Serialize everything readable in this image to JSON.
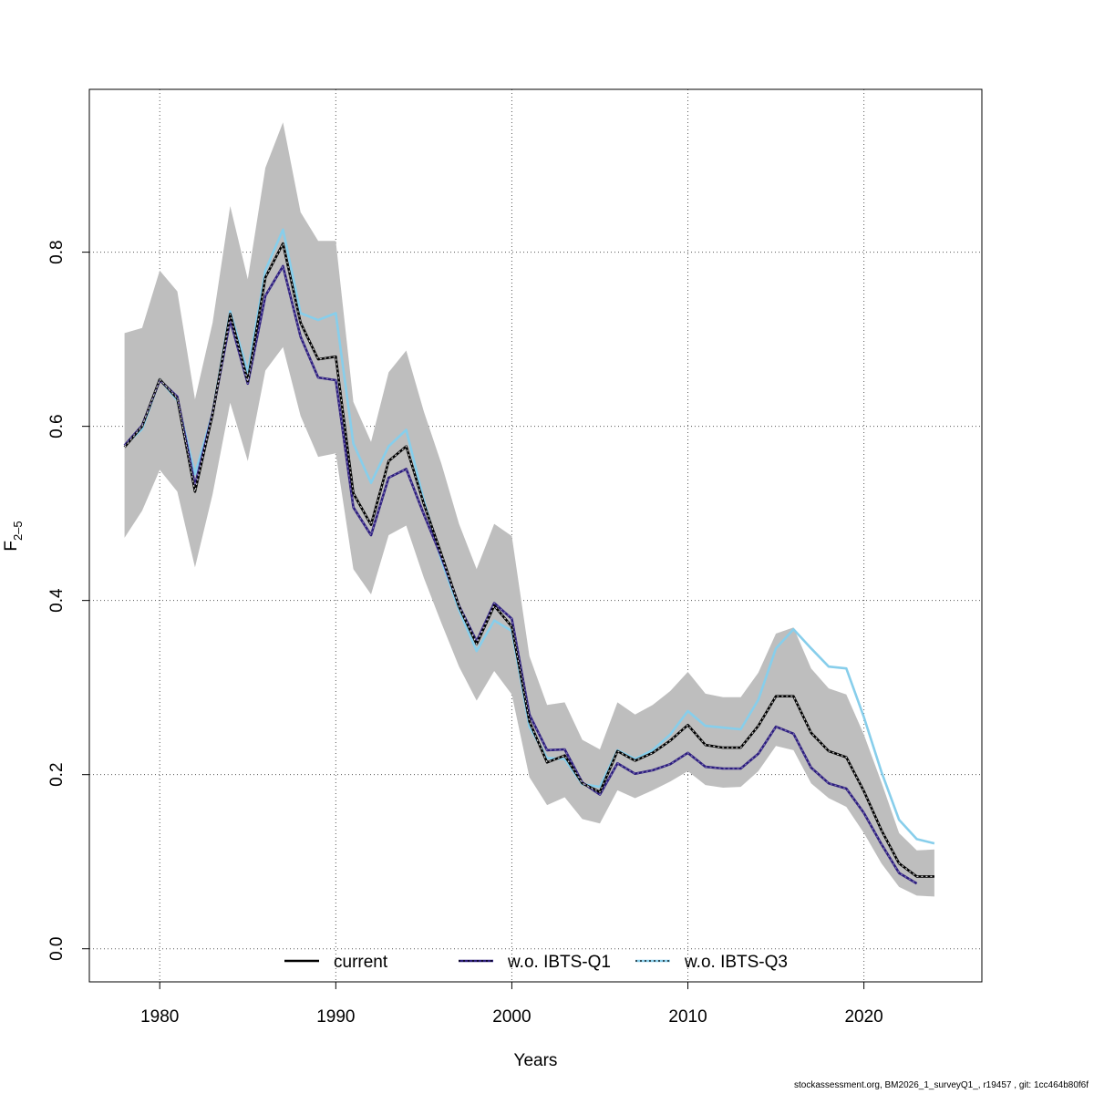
{
  "chart_data": {
    "type": "line",
    "title": "",
    "xlabel": "Years",
    "ylabel_base": "F",
    "ylabel_sub": "2–5",
    "xlim": [
      1976.0,
      2026.7
    ],
    "ylim": [
      -0.038,
      0.987
    ],
    "x_ticks": [
      "1980",
      "1990",
      "2000",
      "2010",
      "2020"
    ],
    "y_ticks": [
      "0.0",
      "0.2",
      "0.4",
      "0.6",
      "0.8"
    ],
    "grid": true,
    "legend_position": "bottom",
    "ci_color": "#bebebe",
    "ci_band": {
      "x": [
        1978,
        1979,
        1980,
        1981,
        1982,
        1983,
        1984,
        1985,
        1986,
        1987,
        1988,
        1989,
        1990,
        1991,
        1992,
        1993,
        1994,
        1995,
        1996,
        1997,
        1998,
        1999,
        2000,
        2001,
        2002,
        2003,
        2004,
        2005,
        2006,
        2007,
        2008,
        2009,
        2010,
        2011,
        2012,
        2013,
        2014,
        2015,
        2016,
        2017,
        2018,
        2019,
        2020,
        2021,
        2022,
        2023,
        2024
      ],
      "upper": [
        0.707,
        0.713,
        0.779,
        0.755,
        0.631,
        0.719,
        0.853,
        0.769,
        0.897,
        0.949,
        0.846,
        0.813,
        0.813,
        0.628,
        0.582,
        0.662,
        0.687,
        0.617,
        0.557,
        0.488,
        0.436,
        0.488,
        0.474,
        0.336,
        0.28,
        0.283,
        0.24,
        0.229,
        0.283,
        0.269,
        0.28,
        0.296,
        0.318,
        0.293,
        0.289,
        0.289,
        0.317,
        0.362,
        0.369,
        0.322,
        0.299,
        0.292,
        0.246,
        0.191,
        0.133,
        0.113,
        0.114
      ],
      "lower": [
        0.472,
        0.503,
        0.55,
        0.525,
        0.438,
        0.522,
        0.627,
        0.56,
        0.664,
        0.691,
        0.612,
        0.565,
        0.569,
        0.436,
        0.407,
        0.475,
        0.486,
        0.426,
        0.374,
        0.324,
        0.285,
        0.319,
        0.292,
        0.197,
        0.165,
        0.174,
        0.149,
        0.144,
        0.182,
        0.173,
        0.182,
        0.192,
        0.204,
        0.188,
        0.185,
        0.186,
        0.204,
        0.233,
        0.228,
        0.19,
        0.173,
        0.163,
        0.133,
        0.098,
        0.071,
        0.061,
        0.06
      ]
    },
    "series": [
      {
        "name": "current",
        "color": "#000000",
        "x": [
          1978,
          1979,
          1980,
          1981,
          1982,
          1983,
          1984,
          1985,
          1986,
          1987,
          1988,
          1989,
          1990,
          1991,
          1992,
          1993,
          1994,
          1995,
          1996,
          1997,
          1998,
          1999,
          2000,
          2001,
          2002,
          2003,
          2004,
          2005,
          2006,
          2007,
          2008,
          2009,
          2010,
          2011,
          2012,
          2013,
          2014,
          2015,
          2016,
          2017,
          2018,
          2019,
          2020,
          2021,
          2022,
          2023,
          2024
        ],
        "y": [
          0.576,
          0.6,
          0.654,
          0.632,
          0.525,
          0.614,
          0.729,
          0.652,
          0.771,
          0.81,
          0.719,
          0.677,
          0.68,
          0.523,
          0.487,
          0.56,
          0.577,
          0.511,
          0.453,
          0.393,
          0.35,
          0.394,
          0.37,
          0.261,
          0.214,
          0.222,
          0.19,
          0.18,
          0.227,
          0.216,
          0.225,
          0.239,
          0.257,
          0.234,
          0.231,
          0.231,
          0.256,
          0.29,
          0.29,
          0.248,
          0.227,
          0.22,
          0.181,
          0.136,
          0.098,
          0.083,
          0.083
        ]
      },
      {
        "name": "w.o. IBTS-Q1",
        "color": "#2c1d7e",
        "x": [
          1978,
          1979,
          1980,
          1981,
          1982,
          1983,
          1984,
          1985,
          1986,
          1987,
          1988,
          1989,
          1990,
          1991,
          1992,
          1993,
          1994,
          1995,
          1996,
          1997,
          1998,
          1999,
          2000,
          2001,
          2002,
          2003,
          2004,
          2005,
          2006,
          2007,
          2008,
          2009,
          2010,
          2011,
          2012,
          2013,
          2014,
          2015,
          2016,
          2017,
          2018,
          2019,
          2020,
          2021,
          2022,
          2023
        ],
        "y": [
          0.578,
          0.601,
          0.653,
          0.634,
          0.532,
          0.615,
          0.722,
          0.649,
          0.75,
          0.784,
          0.703,
          0.656,
          0.653,
          0.507,
          0.475,
          0.541,
          0.551,
          0.499,
          0.45,
          0.394,
          0.353,
          0.397,
          0.379,
          0.269,
          0.228,
          0.229,
          0.191,
          0.177,
          0.213,
          0.201,
          0.205,
          0.212,
          0.225,
          0.209,
          0.207,
          0.207,
          0.224,
          0.255,
          0.247,
          0.208,
          0.19,
          0.184,
          0.156,
          0.12,
          0.087,
          0.075
        ]
      },
      {
        "name": "w.o. IBTS-Q3",
        "color": "#87ceeb",
        "x": [
          1978,
          1979,
          1980,
          1981,
          1982,
          1983,
          1984,
          1985,
          1986,
          1987,
          1988,
          1989,
          1990,
          1991,
          1992,
          1993,
          1994,
          1995,
          1996,
          1997,
          1998,
          1999,
          2000,
          2001,
          2002,
          2003,
          2004,
          2005,
          2006,
          2007,
          2008,
          2009,
          2010,
          2011,
          2012,
          2013,
          2014,
          2015,
          2016,
          2017,
          2018,
          2019,
          2020,
          2021,
          2022,
          2023,
          2024
        ],
        "y": [
          0.578,
          0.597,
          0.654,
          0.63,
          0.545,
          0.615,
          0.732,
          0.662,
          0.779,
          0.826,
          0.73,
          0.722,
          0.73,
          0.58,
          0.535,
          0.577,
          0.596,
          0.515,
          0.446,
          0.389,
          0.342,
          0.377,
          0.365,
          0.255,
          0.219,
          0.218,
          0.189,
          0.186,
          0.228,
          0.218,
          0.228,
          0.246,
          0.273,
          0.256,
          0.254,
          0.252,
          0.286,
          0.345,
          0.367,
          0.345,
          0.324,
          0.322,
          0.266,
          0.203,
          0.148,
          0.126,
          0.121
        ]
      }
    ],
    "legend": [
      {
        "label": "current",
        "color": "#000000",
        "style": "solid"
      },
      {
        "label": "w.o. IBTS-Q1",
        "color": "#2c1d7e",
        "style": "solid-dotted"
      },
      {
        "label": "w.o. IBTS-Q3",
        "color": "#87ceeb",
        "style": "solid-dotted"
      }
    ]
  },
  "footer_text": "stockassessment.org, BM2026_1_surveyQ1_, r19457 , git: 1cc464b80f6f"
}
